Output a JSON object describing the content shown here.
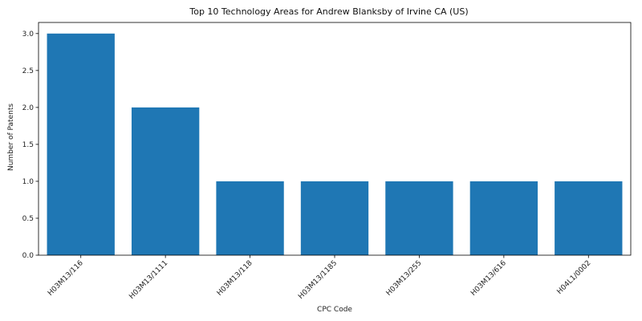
{
  "chart_data": {
    "type": "bar",
    "title": "Top 10 Technology Areas for Andrew Blanksby of Irvine CA (US)",
    "xlabel": "CPC Code",
    "ylabel": "Number of Patents",
    "categories": [
      "H03M13/116",
      "H03M13/1111",
      "H03M13/118",
      "H03M13/1185",
      "H03M13/255",
      "H03M13/616",
      "H04L1/0002"
    ],
    "values": [
      3,
      2,
      1,
      1,
      1,
      1,
      1
    ],
    "ylim": [
      0,
      3.15
    ],
    "yticks": [
      "0.0",
      "0.5",
      "1.0",
      "1.5",
      "2.0",
      "2.5",
      "3.0"
    ],
    "bar_color": "#1f77b4",
    "grid": false
  }
}
